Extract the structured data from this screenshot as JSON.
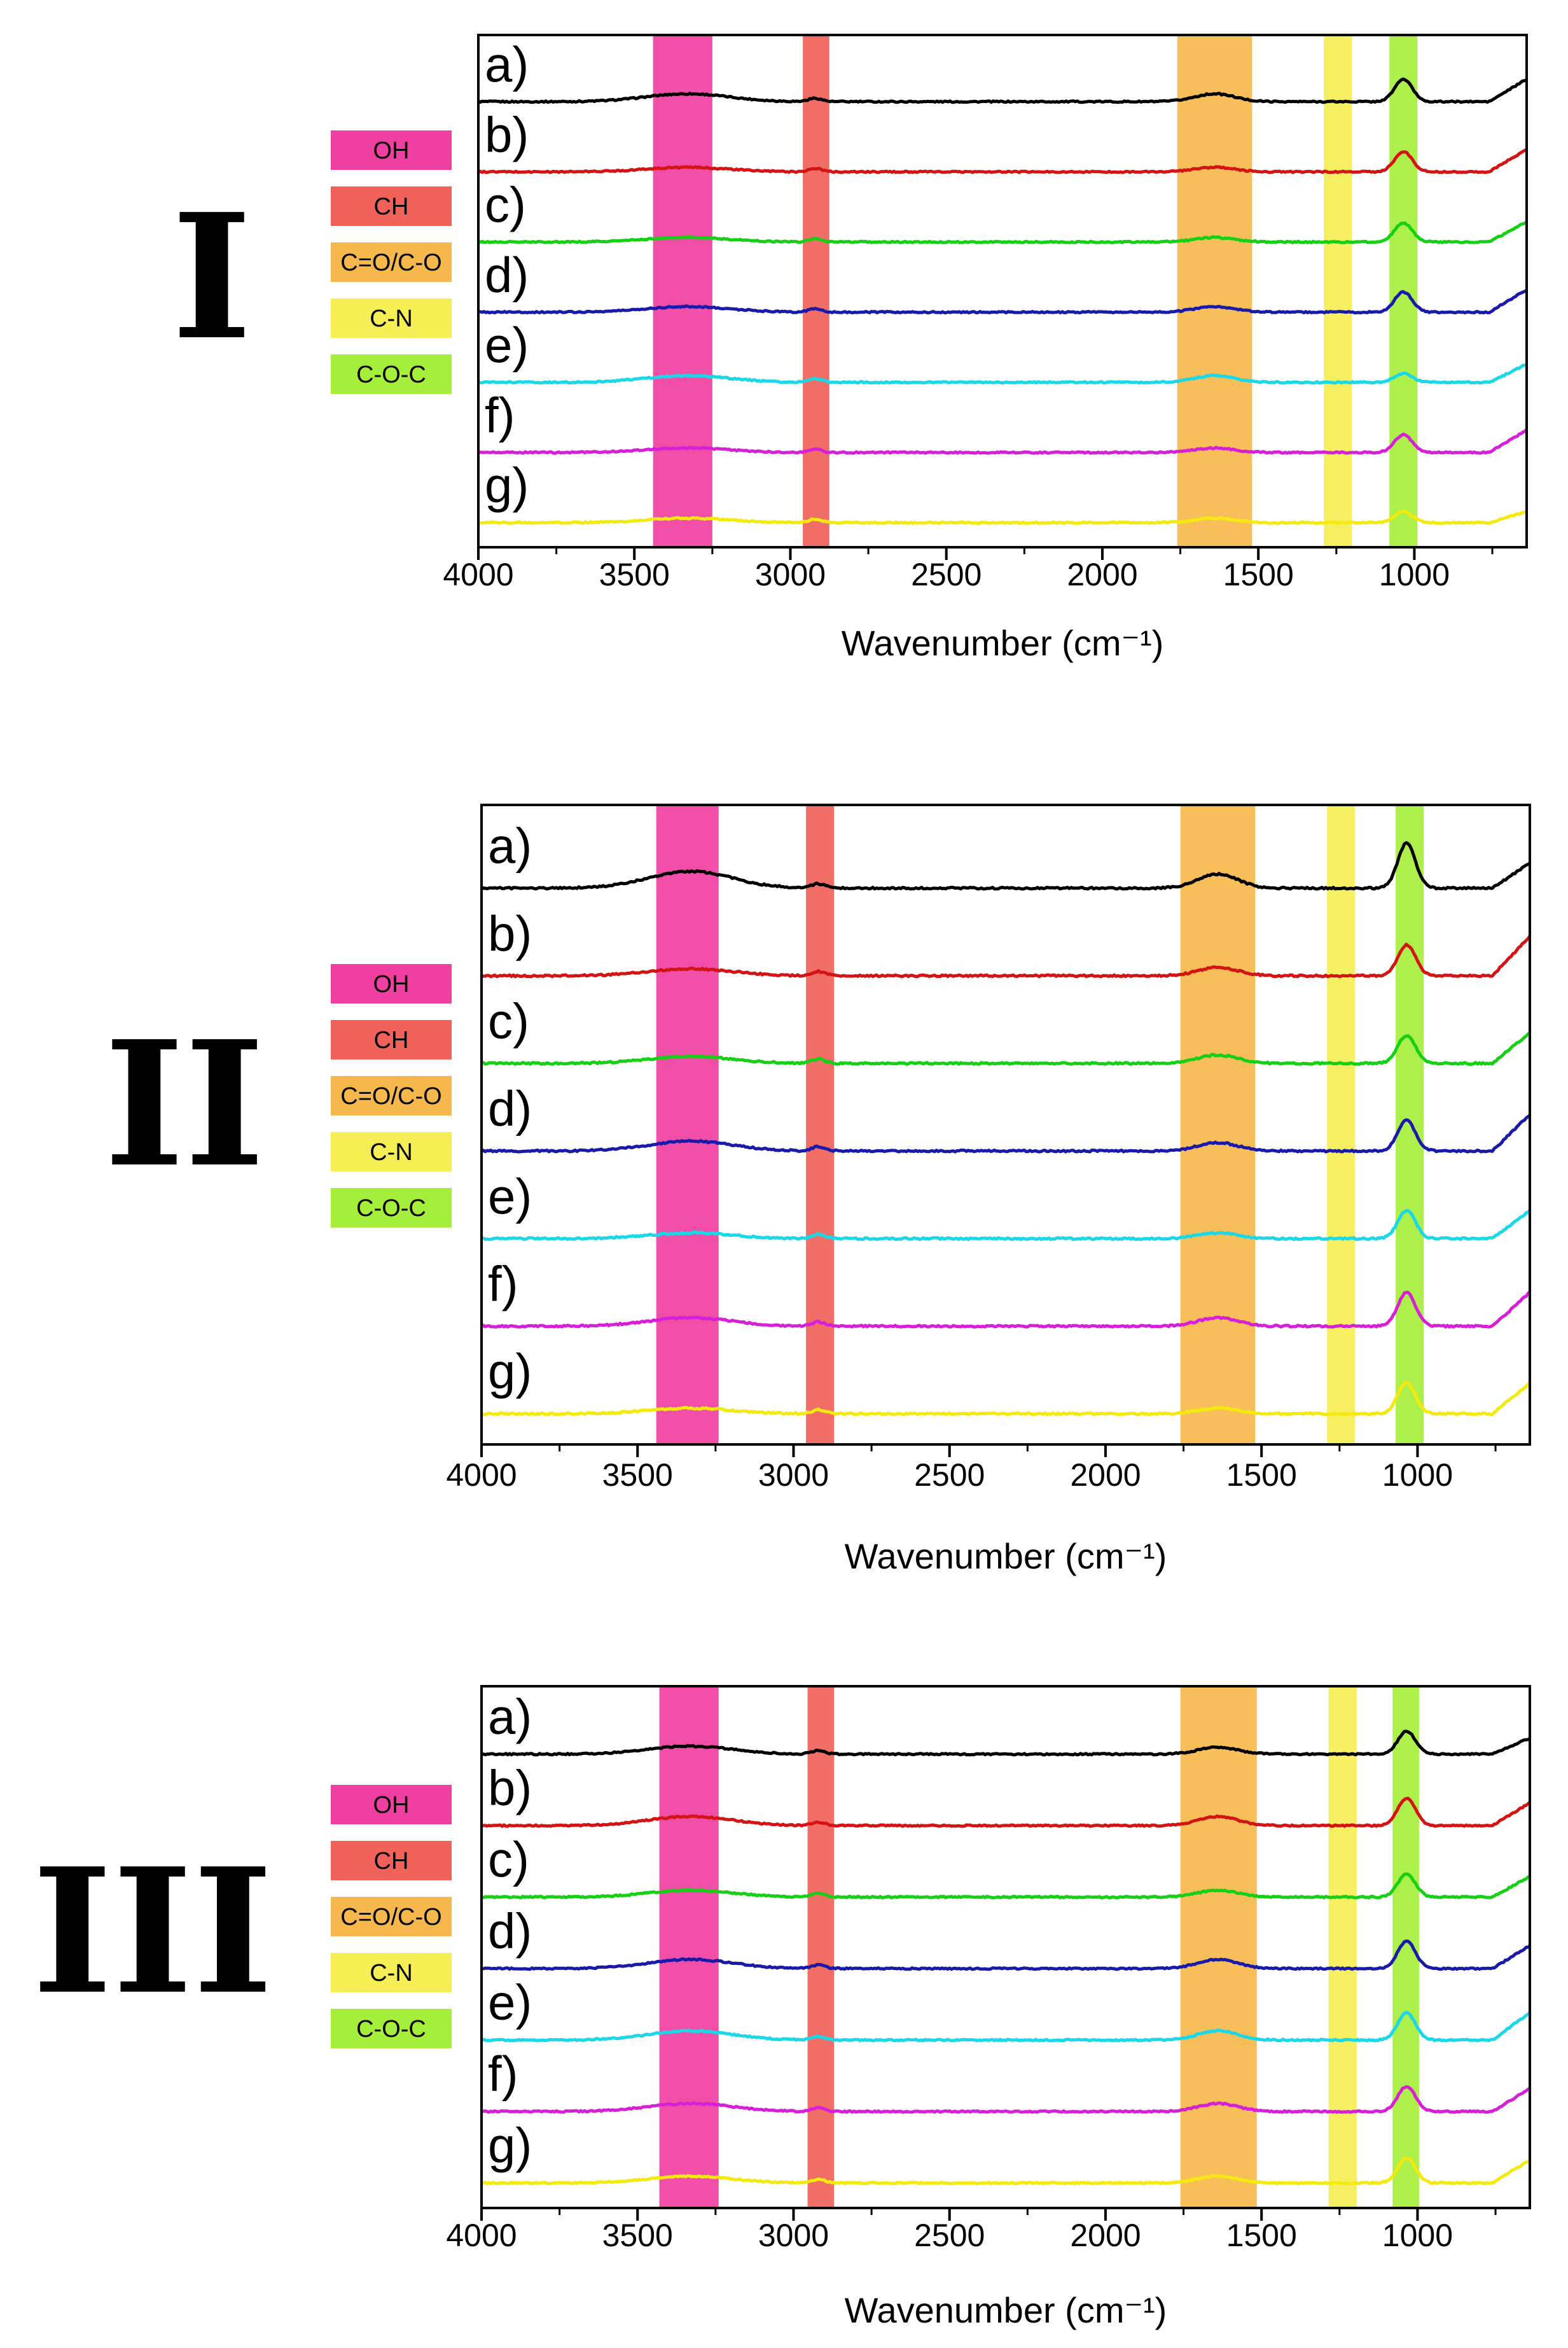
{
  "figure": {
    "band_legend": [
      {
        "label": "OH",
        "color": "#ef3fa0"
      },
      {
        "label": "CH",
        "color": "#f0625a"
      },
      {
        "label": "C=O/C-O",
        "color": "#f6b84c"
      },
      {
        "label": "C-N",
        "color": "#f5ee55"
      },
      {
        "label": "C-O-C",
        "color": "#a6ee3c"
      }
    ],
    "curve_colors": [
      "#000000",
      "#d41414",
      "#16d016",
      "#1a1aaa",
      "#1ad8e8",
      "#d71fd7",
      "#f5ea10"
    ]
  },
  "chart_data": [
    {
      "type": "line",
      "panel_label": "I",
      "xlabel": "Wavenumber (cm⁻¹)",
      "xlim": [
        4000,
        640
      ],
      "xticks": [
        "4000",
        "3500",
        "3000",
        "2500",
        "2000",
        "1500",
        "1000"
      ],
      "bands": [
        {
          "label": "OH",
          "range": [
            3440,
            3250
          ]
        },
        {
          "label": "CH",
          "range": [
            2960,
            2875
          ]
        },
        {
          "label": "C=O/C-O",
          "range": [
            1760,
            1520
          ]
        },
        {
          "label": "C-N",
          "range": [
            1290,
            1200
          ]
        },
        {
          "label": "C-O-C",
          "range": [
            1080,
            990
          ]
        }
      ],
      "series": [
        {
          "name": "a)",
          "label": "a)",
          "peak_1035": 1.0,
          "oh": 0.35,
          "amide": 0.35,
          "end": 1.0
        },
        {
          "name": "b)",
          "label": "b)",
          "peak_1035": 0.9,
          "oh": 0.2,
          "amide": 0.2,
          "end": 1.0
        },
        {
          "name": "c)",
          "label": "c)",
          "peak_1035": 0.85,
          "oh": 0.2,
          "amide": 0.2,
          "end": 0.9
        },
        {
          "name": "d)",
          "label": "d)",
          "peak_1035": 0.9,
          "oh": 0.25,
          "amide": 0.25,
          "end": 1.0
        },
        {
          "name": "e)",
          "label": "e)",
          "peak_1035": 0.4,
          "oh": 0.3,
          "amide": 0.3,
          "end": 0.8
        },
        {
          "name": "f)",
          "label": "f)",
          "peak_1035": 0.8,
          "oh": 0.2,
          "amide": 0.2,
          "end": 1.0
        },
        {
          "name": "g)",
          "label": "g)",
          "peak_1035": 0.5,
          "oh": 0.2,
          "amide": 0.2,
          "end": 0.5
        }
      ]
    },
    {
      "type": "line",
      "panel_label": "II",
      "xlabel": "Wavenumber (cm⁻¹)",
      "xlim": [
        4000,
        640
      ],
      "xticks": [
        "4000",
        "3500",
        "3000",
        "2500",
        "2000",
        "1500",
        "1000"
      ],
      "bands": [
        {
          "label": "OH",
          "range": [
            3440,
            3240
          ]
        },
        {
          "label": "CH",
          "range": [
            2960,
            2870
          ]
        },
        {
          "label": "C=O/C-O",
          "range": [
            1760,
            1520
          ]
        },
        {
          "label": "C-N",
          "range": [
            1290,
            1200
          ]
        },
        {
          "label": "C-O-C",
          "range": [
            1070,
            980
          ]
        }
      ],
      "series": [
        {
          "name": "a)",
          "label": "a)",
          "peak_1035": 1.6,
          "oh": 0.6,
          "amide": 0.5,
          "end": 0.9
        },
        {
          "name": "b)",
          "label": "b)",
          "peak_1035": 1.1,
          "oh": 0.25,
          "amide": 0.3,
          "end": 1.4
        },
        {
          "name": "c)",
          "label": "c)",
          "peak_1035": 1.0,
          "oh": 0.25,
          "amide": 0.3,
          "end": 1.1
        },
        {
          "name": "d)",
          "label": "d)",
          "peak_1035": 1.1,
          "oh": 0.35,
          "amide": 0.3,
          "end": 1.3
        },
        {
          "name": "e)",
          "label": "e)",
          "peak_1035": 1.0,
          "oh": 0.2,
          "amide": 0.2,
          "end": 1.0
        },
        {
          "name": "f)",
          "label": "f)",
          "peak_1035": 1.2,
          "oh": 0.3,
          "amide": 0.3,
          "end": 1.2
        },
        {
          "name": "g)",
          "label": "g)",
          "peak_1035": 1.1,
          "oh": 0.2,
          "amide": 0.2,
          "end": 1.1
        }
      ]
    },
    {
      "type": "line",
      "panel_label": "III",
      "xlabel": "Wavenumber (cm⁻¹)",
      "xlim": [
        4000,
        640
      ],
      "xticks": [
        "4000",
        "3500",
        "3000",
        "2500",
        "2000",
        "1500",
        "1000"
      ],
      "bands": [
        {
          "label": "OH",
          "range": [
            3430,
            3240
          ]
        },
        {
          "label": "CH",
          "range": [
            2955,
            2870
          ]
        },
        {
          "label": "C=O/C-O",
          "range": [
            1760,
            1515
          ]
        },
        {
          "label": "C-N",
          "range": [
            1285,
            1195
          ]
        },
        {
          "label": "C-O-C",
          "range": [
            1080,
            995
          ]
        }
      ],
      "series": [
        {
          "name": "a)",
          "label": "a)",
          "peak_1035": 1.0,
          "oh": 0.35,
          "amide": 0.3,
          "end": 0.7
        },
        {
          "name": "b)",
          "label": "b)",
          "peak_1035": 1.2,
          "oh": 0.4,
          "amide": 0.4,
          "end": 1.0
        },
        {
          "name": "c)",
          "label": "c)",
          "peak_1035": 1.0,
          "oh": 0.3,
          "amide": 0.3,
          "end": 0.9
        },
        {
          "name": "d)",
          "label": "d)",
          "peak_1035": 1.2,
          "oh": 0.4,
          "amide": 0.4,
          "end": 1.0
        },
        {
          "name": "e)",
          "label": "e)",
          "peak_1035": 1.2,
          "oh": 0.4,
          "amide": 0.4,
          "end": 1.2
        },
        {
          "name": "f)",
          "label": "f)",
          "peak_1035": 1.1,
          "oh": 0.35,
          "amide": 0.35,
          "end": 1.0
        },
        {
          "name": "g)",
          "label": "g)",
          "peak_1035": 1.1,
          "oh": 0.3,
          "amide": 0.3,
          "end": 1.0
        }
      ]
    }
  ]
}
